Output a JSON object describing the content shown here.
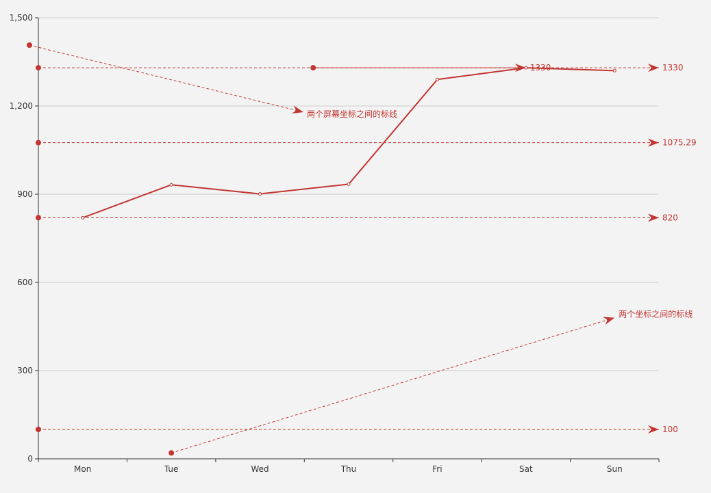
{
  "chart_data": {
    "type": "line",
    "categories": [
      "Mon",
      "Tue",
      "Wed",
      "Thu",
      "Fri",
      "Sat",
      "Sun"
    ],
    "series": [
      {
        "values": [
          820,
          932,
          901,
          934,
          1290,
          1330,
          1320
        ],
        "color": "#c23531"
      }
    ],
    "ylim": [
      0,
      1500
    ],
    "yticks": [
      0,
      300,
      600,
      900,
      1200,
      1500
    ],
    "ytick_labels": [
      "0",
      "300",
      "600",
      "900",
      "1,200",
      "1,500"
    ],
    "grid": true,
    "mark_lines": [
      {
        "label": "1330",
        "y": 1330
      },
      {
        "label": "1075.29",
        "y": 1075.29
      },
      {
        "label": "820",
        "y": 820
      },
      {
        "label": "100",
        "y": 100
      }
    ],
    "coord_lines": [
      {
        "label": "1330",
        "from": {
          "x": 2.6,
          "y": 1330
        },
        "to": {
          "x": 5,
          "y": 1330
        },
        "style": "solid"
      },
      {
        "label": "两个坐标之间的标线",
        "from": {
          "x": 1,
          "y": 20
        },
        "to": {
          "x": 6,
          "y": 480
        },
        "style": "dashed"
      }
    ],
    "screen_line": {
      "label": "两个屏幕坐标之间的标线"
    },
    "marker_color": "#c23531"
  }
}
